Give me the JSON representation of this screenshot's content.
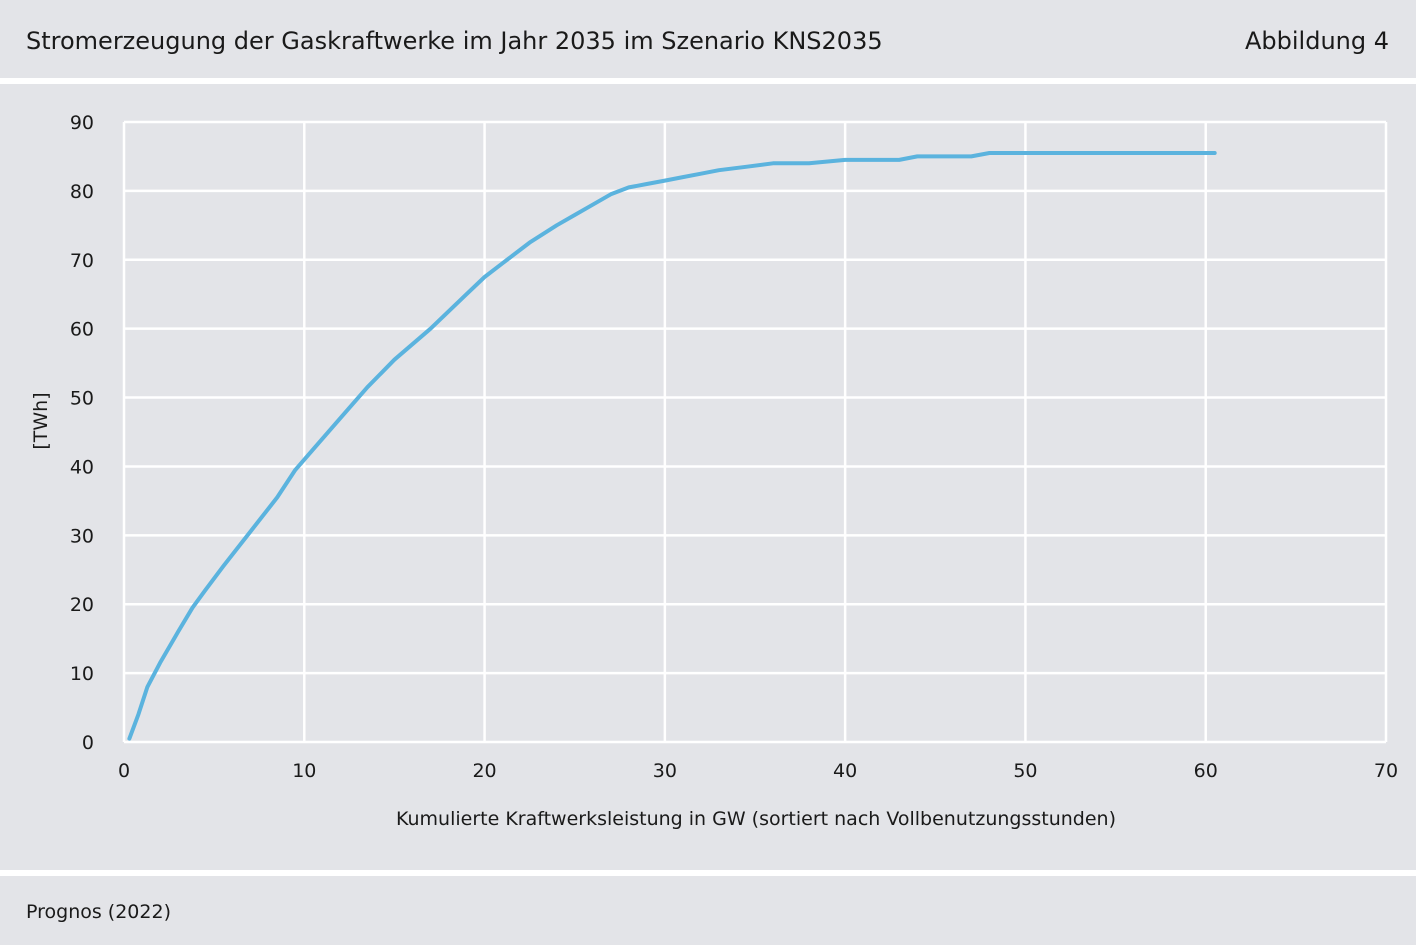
{
  "header": {
    "title": "Stromerzeugung der Gaskraftwerke im Jahr 2035 im Szenario KNS2035",
    "figure_label": "Abbildung 4"
  },
  "footer": {
    "source": "Prognos (2022)"
  },
  "colors": {
    "background": "#e3e4e8",
    "gridline": "#ffffff",
    "series_line": "#5bb3de"
  },
  "chart_data": {
    "type": "line",
    "title": "Stromerzeugung der Gaskraftwerke im Jahr 2035 im Szenario KNS2035",
    "xlabel": "Kumulierte Kraftwerksleistung in GW (sortiert nach Vollbenutzungsstunden)",
    "ylabel": "[TWh]",
    "xlim": [
      0,
      70
    ],
    "ylim": [
      0,
      90
    ],
    "x_ticks": [
      0,
      10,
      20,
      30,
      40,
      50,
      60,
      70
    ],
    "y_ticks": [
      0,
      10,
      20,
      30,
      40,
      50,
      60,
      70,
      80,
      90
    ],
    "grid": true,
    "legend": "none",
    "series": [
      {
        "x": [
          0.3,
          0.8,
          1.3,
          2.0,
          3.0,
          3.8,
          4.5,
          5.5,
          7.0,
          8.5,
          9.5,
          10.5,
          12.0,
          13.5,
          15.0,
          17.0,
          19.0,
          20.0,
          21.0,
          22.5,
          24.0,
          25.0,
          26.0,
          27.0,
          28.0,
          29.0,
          30.0,
          31.0,
          32.0,
          33.0,
          34.5,
          36.0,
          38.0,
          40.0,
          43.0,
          44.0,
          47.0,
          48.0,
          50.0,
          55.0,
          60.5
        ],
        "y": [
          0.5,
          4.0,
          8.0,
          11.5,
          16.0,
          19.5,
          22.0,
          25.5,
          30.5,
          35.5,
          39.5,
          42.5,
          47.0,
          51.5,
          55.5,
          60.0,
          65.0,
          67.5,
          69.5,
          72.5,
          75.0,
          76.5,
          78.0,
          79.5,
          80.5,
          81.0,
          81.5,
          82.0,
          82.5,
          83.0,
          83.5,
          84.0,
          84.0,
          84.5,
          84.5,
          85.0,
          85.0,
          85.5,
          85.5,
          85.5,
          85.5
        ]
      }
    ]
  }
}
